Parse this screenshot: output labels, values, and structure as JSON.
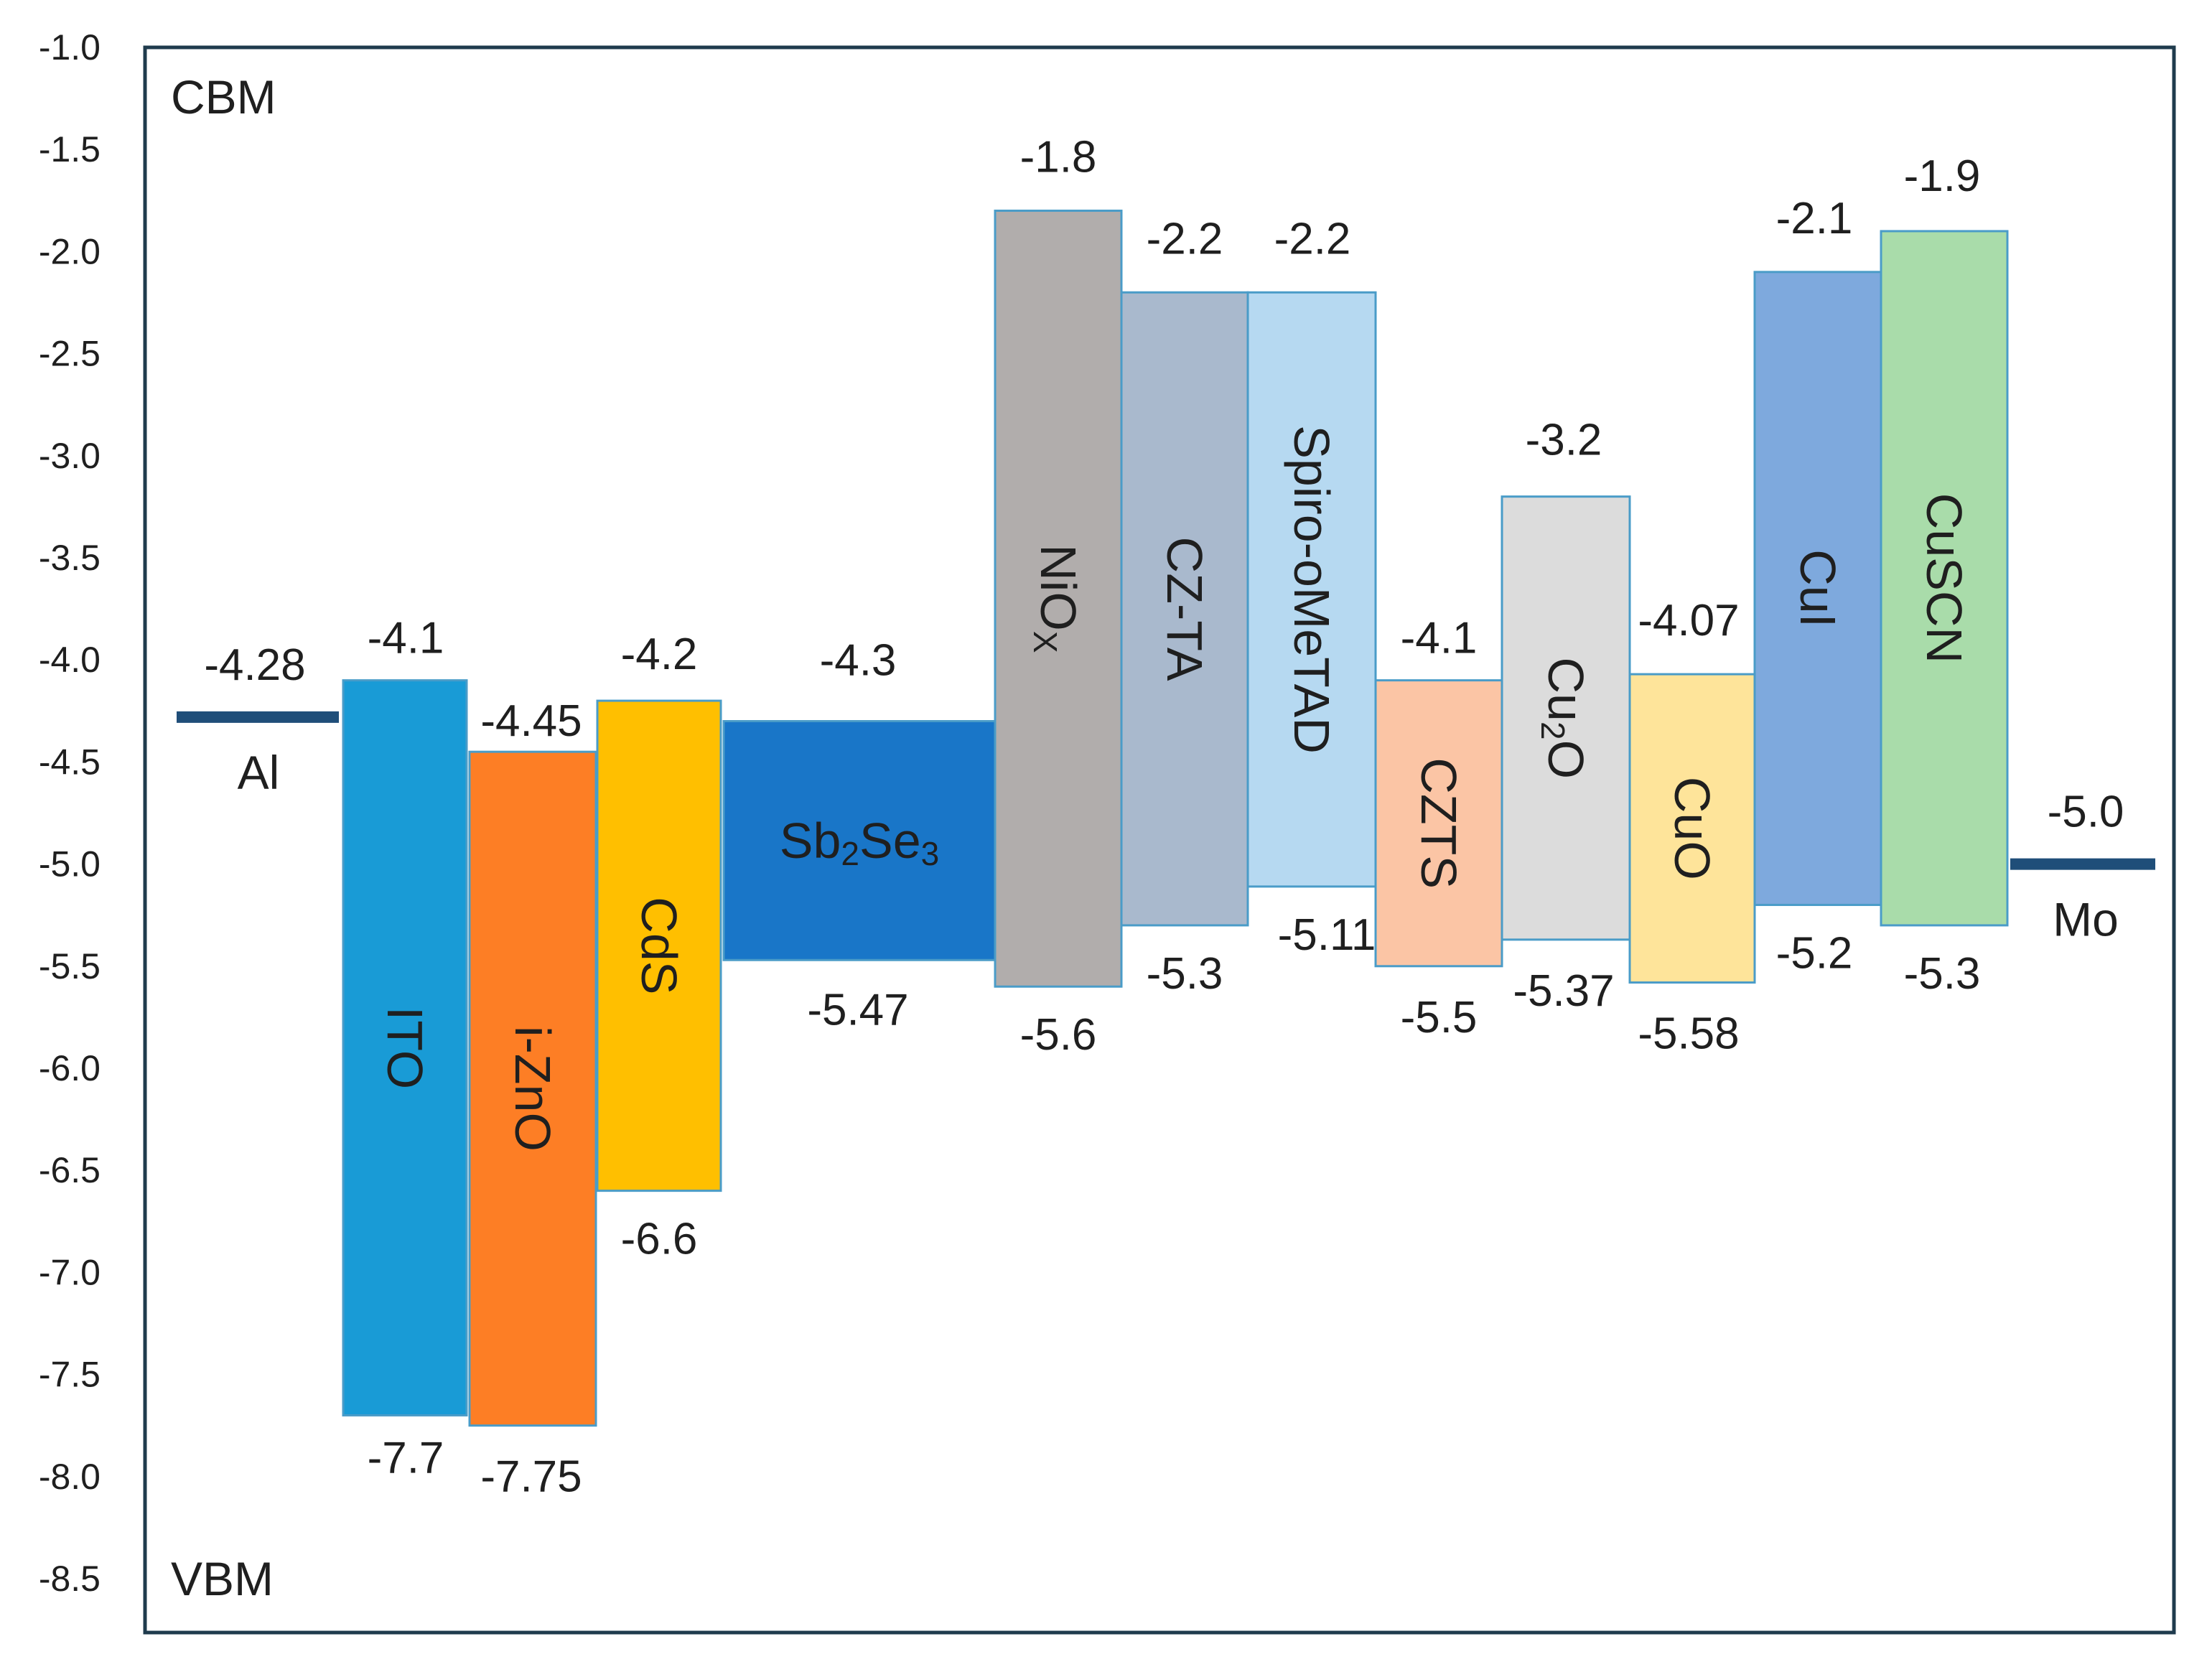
{
  "chart_data": {
    "type": "energy-band-diagram",
    "ylim": [
      -8.5,
      -1.0
    ],
    "yticks": [
      "-1.0",
      "-1.5",
      "-2.0",
      "-2.5",
      "-3.0",
      "-3.5",
      "-4.0",
      "-4.5",
      "-5.0",
      "-5.5",
      "-6.0",
      "-6.5",
      "-7.0",
      "-7.5",
      "-8.0",
      "-8.5"
    ],
    "ytick_values": [
      -1.0,
      -1.5,
      -2.0,
      -2.5,
      -3.0,
      -3.5,
      -4.0,
      -4.5,
      -5.0,
      -5.5,
      -6.0,
      -6.5,
      -7.0,
      -7.5,
      -8.0,
      -8.5
    ],
    "top_label": "CBM",
    "bottom_label": "VBM",
    "contacts": [
      {
        "name": "Al",
        "level": -4.28,
        "value_label": "-4.28",
        "color": "#1f4e79"
      },
      {
        "name": "Mo",
        "level": -5.0,
        "value_label": "-5.0",
        "color": "#1f4e79"
      }
    ],
    "materials": [
      {
        "name": "ITO",
        "main": "ITO",
        "sub": "",
        "cbm": -4.1,
        "vbm": -7.7,
        "cbm_label": "-4.1",
        "vbm_label": "-7.7",
        "color": "#199bd6",
        "rotate": 90
      },
      {
        "name": "i-ZnO",
        "main": "i-ZnO",
        "sub": "",
        "cbm": -4.45,
        "vbm": -7.75,
        "cbm_label": "-4.45",
        "vbm_label": "-7.75",
        "color": "#fd7e25",
        "rotate": 90
      },
      {
        "name": "CdS",
        "main": "CdS",
        "sub": "",
        "cbm": -4.2,
        "vbm": -6.6,
        "cbm_label": "-4.2",
        "vbm_label": "-6.6",
        "color": "#ffbf00",
        "rotate": 90
      },
      {
        "name": "Sb2Se3",
        "main": "Sb",
        "sub": "2",
        "main2": "Se",
        "sub2": "3",
        "cbm": -4.3,
        "vbm": -5.47,
        "cbm_label": "-4.3",
        "vbm_label": "-5.47",
        "color": "#1976c8",
        "rotate": 0
      },
      {
        "name": "NiOx",
        "main": "NiO",
        "sub": "X",
        "cbm": -1.8,
        "vbm": -5.6,
        "cbm_label": "-1.8",
        "vbm_label": "-5.6",
        "color": "#b1adac",
        "rotate": 90
      },
      {
        "name": "CZ-TA",
        "main": "CZ-TA",
        "sub": "",
        "cbm": -2.2,
        "vbm": -5.3,
        "cbm_label": "-2.2",
        "vbm_label": "-5.3",
        "color": "#a9b9cd",
        "rotate": 90
      },
      {
        "name": "Spiro-oMeTAD",
        "main": "Spiro-oMeTAD",
        "sub": "",
        "cbm": -2.2,
        "vbm": -5.11,
        "cbm_label": "-2.2",
        "vbm_label": "-5.11",
        "color": "#b6d9f1",
        "rotate": 90
      },
      {
        "name": "CZTS",
        "main": "CZTS",
        "sub": "",
        "cbm": -4.1,
        "vbm": -5.5,
        "cbm_label": "-4.1",
        "vbm_label": "-5.5",
        "color": "#fbc5a5",
        "rotate": 90
      },
      {
        "name": "Cu2O",
        "main": "Cu",
        "sub": "2",
        "main2": "O",
        "cbm": -3.2,
        "vbm": -5.37,
        "cbm_label": "-3.2",
        "vbm_label": "-5.37",
        "color": "#dcdcdc",
        "rotate": 90
      },
      {
        "name": "CuO",
        "main": "CuO",
        "sub": "",
        "cbm": -4.07,
        "vbm": -5.58,
        "cbm_label": "-4.07",
        "vbm_label": "-5.58",
        "color": "#fee49a",
        "rotate": 90
      },
      {
        "name": "CuI",
        "main": "CuI",
        "sub": "",
        "cbm": -2.1,
        "vbm": -5.2,
        "cbm_label": "-2.1",
        "vbm_label": "-5.2",
        "color": "#7ea9dd",
        "rotate": 90
      },
      {
        "name": "CuSCN",
        "main": "CuSCN",
        "sub": "",
        "cbm": -1.9,
        "vbm": -5.3,
        "cbm_label": "-1.9",
        "vbm_label": "-5.3",
        "color": "#a9dcaa",
        "rotate": 90
      }
    ],
    "colors": {
      "frame": "#1f3b4d",
      "bar_border": "#4a9cc8"
    }
  }
}
